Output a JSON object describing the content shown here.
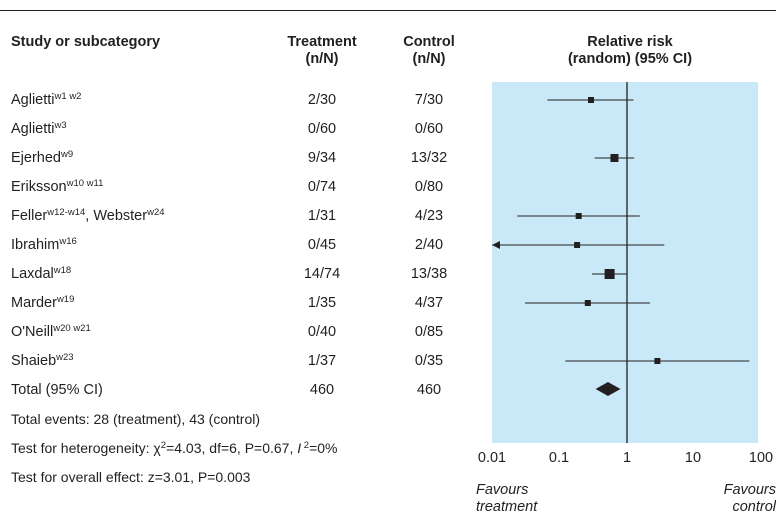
{
  "headers": {
    "study": "Study or subcategory",
    "treatment": [
      "Treatment",
      "(n/N)"
    ],
    "control": [
      "Control",
      "(n/N)"
    ],
    "rr": [
      "Relative risk",
      "(random) (95% CI)"
    ]
  },
  "studies": [
    {
      "name": "Aglietti",
      "sup": "w1 w2",
      "treatment": "2/30",
      "control": "7/30"
    },
    {
      "name": "Aglietti",
      "sup": "w3",
      "treatment": "0/60",
      "control": "0/60"
    },
    {
      "name": "Ejerhed",
      "sup": "w9",
      "treatment": "9/34",
      "control": "13/32"
    },
    {
      "name": "Eriksson",
      "sup": "w10 w11",
      "treatment": "0/74",
      "control": "0/80"
    },
    {
      "name": "Feller",
      "sup": "w12-w14",
      "name2": ", Webster",
      "sup2": "w24",
      "treatment": "1/31",
      "control": "4/23"
    },
    {
      "name": "Ibrahim",
      "sup": "w16",
      "treatment": "0/45",
      "control": "2/40"
    },
    {
      "name": "Laxdal",
      "sup": "w18",
      "treatment": "14/74",
      "control": "13/38"
    },
    {
      "name": "Marder",
      "sup": "w19",
      "treatment": "1/35",
      "control": "4/37"
    },
    {
      "name": "O'Neill",
      "sup": "w20 w21",
      "treatment": "0/40",
      "control": "0/85"
    },
    {
      "name": "Shaieb",
      "sup": "w23",
      "treatment": "1/37",
      "control": "0/35"
    }
  ],
  "total": {
    "label": "Total (95% CI)",
    "treatment": "460",
    "control": "460"
  },
  "footer": {
    "events": "Total events: 28 (treatment), 43 (control)",
    "heterogeneity_prefix": "Test for heterogeneity: ",
    "chi": "χ",
    "chi_sup": "2",
    "heterogeneity_mid": "=4.03, df=6, P=0.67, ",
    "i_letter": "I",
    "i_sup": " 2",
    "heterogeneity_end": "=0%",
    "overall": "Test for overall effect: z=3.01, P=0.003"
  },
  "axis": {
    "ticks": [
      "0.01",
      "0.1",
      "1",
      "10",
      "100"
    ],
    "favours_left": [
      "Favours",
      "treatment"
    ],
    "favours_right": [
      "Favours",
      "control"
    ]
  },
  "colors": {
    "panel": "#c9e8f8",
    "ink": "#231f20"
  },
  "chart_data": {
    "type": "scatter",
    "scale": "log10",
    "xlim": [
      0.01,
      100
    ],
    "reference_line": 1,
    "points": [
      {
        "study": "Aglietti w1 w2",
        "rr": 0.29,
        "lower": 0.065,
        "upper": 1.25
      },
      {
        "study": "Aglietti w3",
        "rr": null,
        "lower": null,
        "upper": null
      },
      {
        "study": "Ejerhed w9",
        "rr": 0.65,
        "lower": 0.33,
        "upper": 1.28
      },
      {
        "study": "Eriksson w10 w11",
        "rr": null,
        "lower": null,
        "upper": null
      },
      {
        "study": "Feller w12-w14, Webster w24",
        "rr": 0.19,
        "lower": 0.023,
        "upper": 1.55
      },
      {
        "study": "Ibrahim w16",
        "rr": 0.18,
        "lower": 0.008,
        "upper": 3.6,
        "lower_truncated": true
      },
      {
        "study": "Laxdal w18",
        "rr": 0.55,
        "lower": 0.3,
        "upper": 1.0
      },
      {
        "study": "Marder w19",
        "rr": 0.26,
        "lower": 0.03,
        "upper": 2.2
      },
      {
        "study": "O'Neill w20 w21",
        "rr": null,
        "lower": null,
        "upper": null
      },
      {
        "study": "Shaieb w23",
        "rr": 2.84,
        "lower": 0.12,
        "upper": 67
      }
    ],
    "total": {
      "rr": 0.52,
      "lower": 0.34,
      "upper": 0.8
    }
  }
}
